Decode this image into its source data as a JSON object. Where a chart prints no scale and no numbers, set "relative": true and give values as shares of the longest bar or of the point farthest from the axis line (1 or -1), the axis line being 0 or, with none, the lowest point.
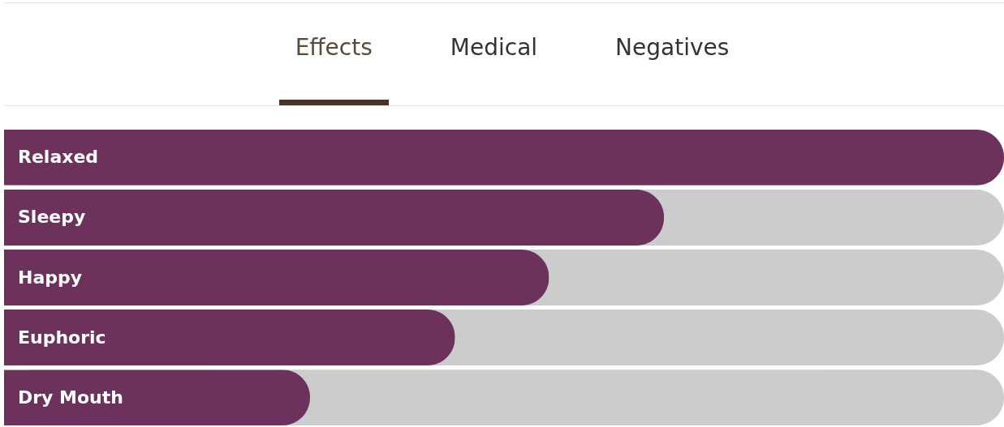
{
  "chart_data": {
    "type": "bar",
    "orientation": "horizontal",
    "relative": true,
    "categories": [
      "Relaxed",
      "Sleepy",
      "Happy",
      "Euphoric",
      "Dry Mouth"
    ],
    "values": [
      1,
      0.66,
      0.545,
      0.451,
      0.306
    ],
    "color": "#6d325c",
    "annotations": [
      "Effects",
      "Medical",
      "Negatives"
    ]
  }
}
